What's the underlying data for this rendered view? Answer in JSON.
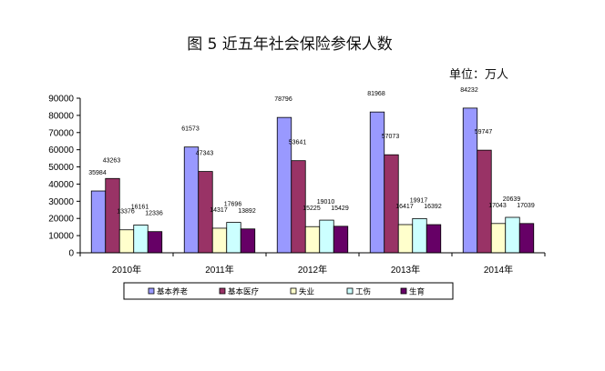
{
  "chart_data": {
    "type": "bar",
    "title": "图 5   近五年社会保险参保人数",
    "unit_label": "单位：万人",
    "categories": [
      "2010年",
      "2011年",
      "2012年",
      "2013年",
      "2014年"
    ],
    "ylim": [
      0,
      90000
    ],
    "yticks": [
      0,
      10000,
      20000,
      30000,
      40000,
      50000,
      60000,
      70000,
      80000,
      90000
    ],
    "grid": false,
    "legend_position": "bottom",
    "series": [
      {
        "name": "基本养老",
        "color": "#9999ff",
        "values": [
          35984,
          61573,
          78796,
          81968,
          84232
        ]
      },
      {
        "name": "基本医疗",
        "color": "#993366",
        "values": [
          43263,
          47343,
          53641,
          57073,
          59747
        ]
      },
      {
        "name": "失业",
        "color": "#ffffcc",
        "values": [
          13376,
          14317,
          15225,
          16417,
          17043
        ]
      },
      {
        "name": "工伤",
        "color": "#ccffff",
        "values": [
          16161,
          17696,
          19010,
          19917,
          20639
        ]
      },
      {
        "name": "生育",
        "color": "#660066",
        "values": [
          12336,
          13892,
          15429,
          16392,
          17039
        ]
      }
    ]
  }
}
